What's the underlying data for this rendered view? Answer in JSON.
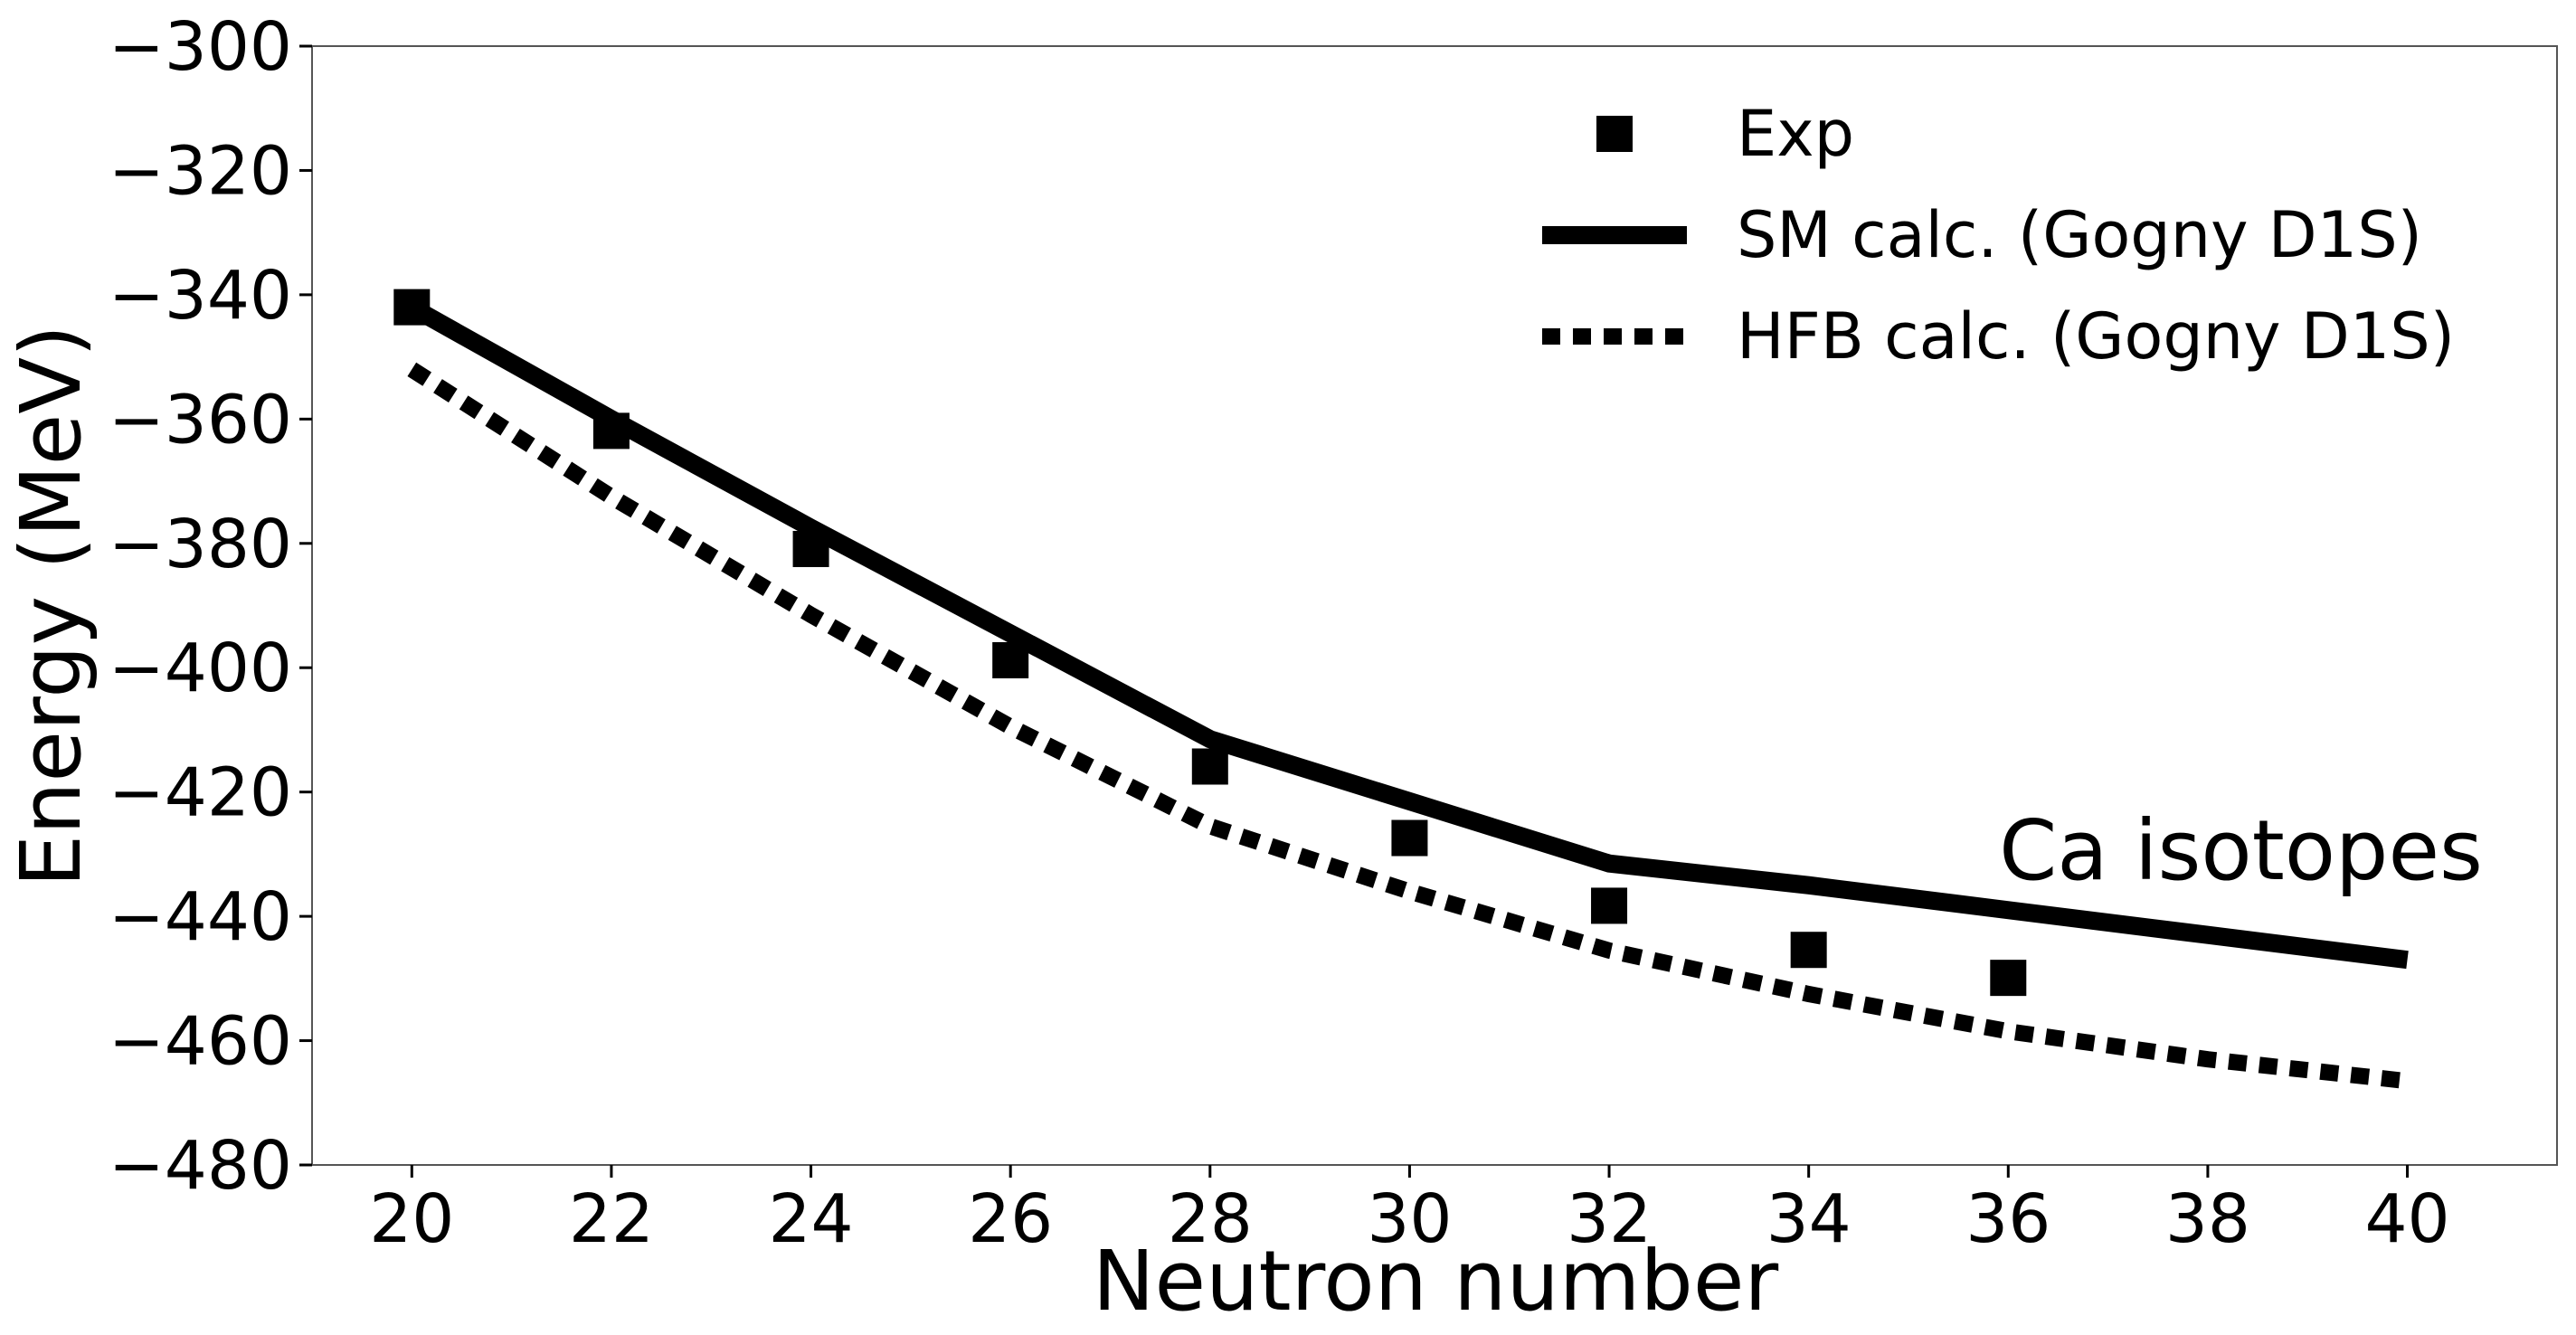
{
  "chart_data": {
    "type": "line",
    "xlabel": "Neutron number",
    "ylabel": "Energy (MeV)",
    "xlim": [
      19,
      41.5
    ],
    "ylim": [
      -480,
      -300
    ],
    "xticks": [
      20,
      22,
      24,
      26,
      28,
      30,
      32,
      34,
      36,
      38,
      40
    ],
    "yticks": [
      -300,
      -320,
      -340,
      -360,
      -380,
      -400,
      -420,
      -440,
      -460,
      -480
    ],
    "xtick_labels": [
      "20",
      "22",
      "24",
      "26",
      "28",
      "30",
      "32",
      "34",
      "36",
      "38",
      "40"
    ],
    "ytick_labels": [
      "−300",
      "−320",
      "−340",
      "−360",
      "−380",
      "−400",
      "−420",
      "−440",
      "−460",
      "−480"
    ],
    "grid": false,
    "legend_position": "top-right",
    "annotation": "Ca isotopes",
    "series": [
      {
        "name": "Exp",
        "style": "markers-square",
        "color": "#000000",
        "x": [
          20,
          22,
          24,
          26,
          28,
          30,
          32,
          34,
          36
        ],
        "y": [
          -342,
          -361.9,
          -380.9,
          -398.8,
          -415.9,
          -427.4,
          -438.3,
          -445.4,
          -449.9
        ]
      },
      {
        "name": "SM  calc. (Gogny D1S)",
        "style": "solid",
        "color": "#000000",
        "x": [
          20,
          22,
          24,
          26,
          28,
          30,
          32,
          34,
          36,
          38,
          40
        ],
        "y": [
          -342,
          -360,
          -377.5,
          -394.5,
          -411.5,
          -421.5,
          -431.5,
          -435,
          -439,
          -443,
          -447
        ]
      },
      {
        "name": "HFB calc. (Gogny D1S)",
        "style": "dotted",
        "color": "#000000",
        "x": [
          20,
          22,
          24,
          26,
          28,
          30,
          32,
          34,
          36,
          38,
          40
        ],
        "y": [
          -352,
          -372.5,
          -391.5,
          -409.5,
          -425.5,
          -436,
          -445.5,
          -452.5,
          -458.5,
          -463,
          -466.5
        ]
      }
    ]
  }
}
